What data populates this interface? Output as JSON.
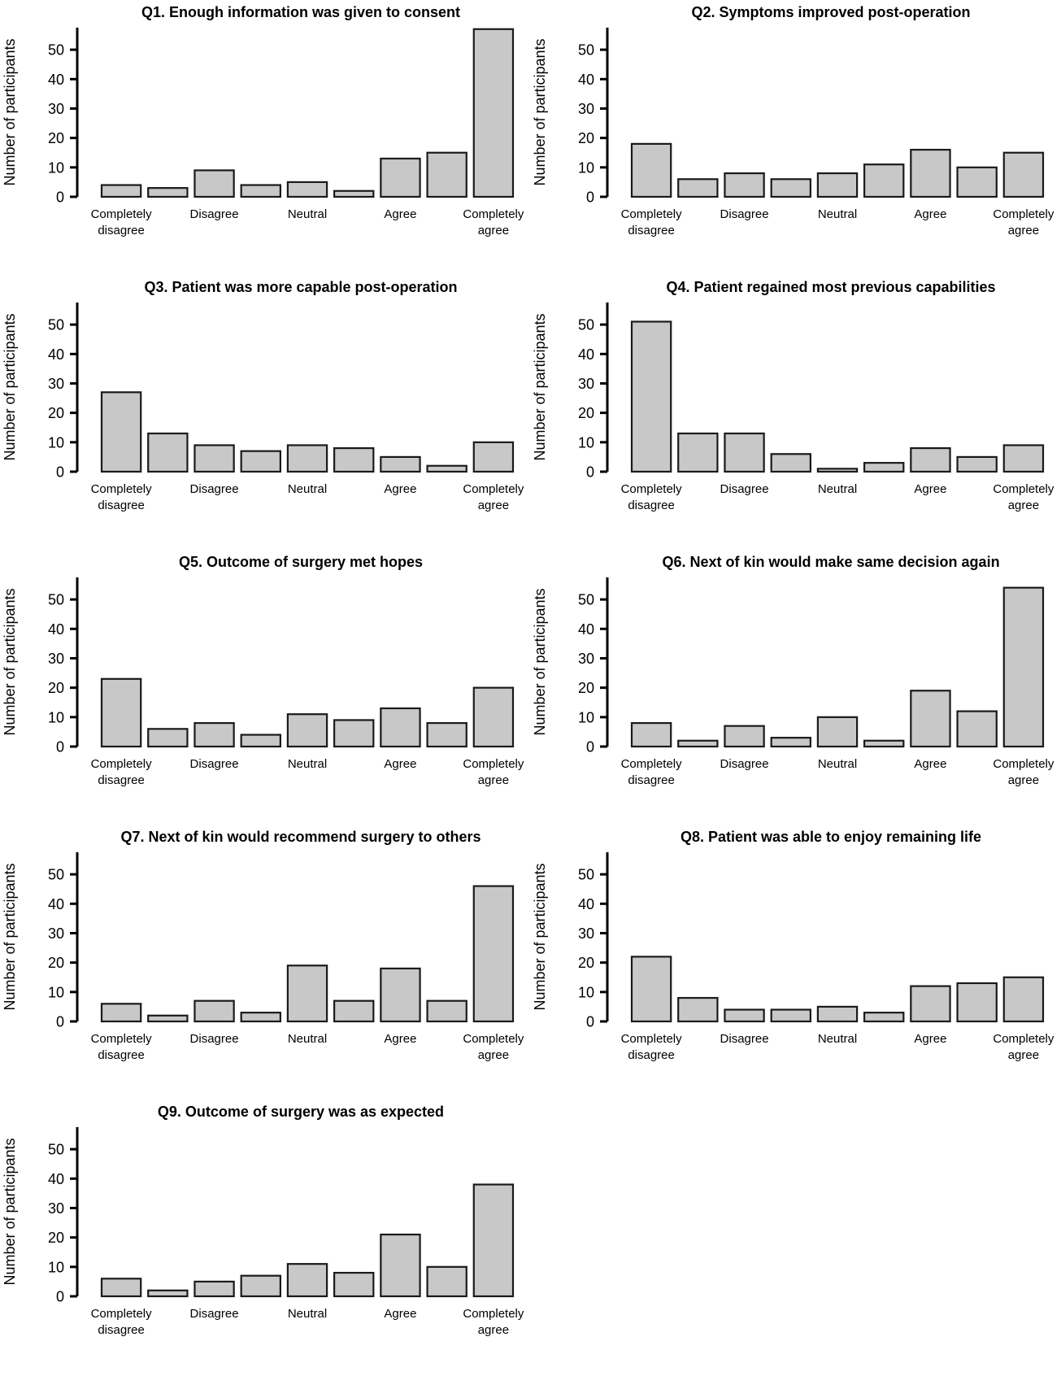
{
  "figure": {
    "background": "#ffffff",
    "description": "Grid of nine Likert-scale bar charts of survey responses (Q1-Q9)"
  },
  "colors": {
    "bar_fill": "#c8c8c8",
    "bar_stroke": "#1a1a1a",
    "axis": "#000000",
    "text": "#000000"
  },
  "shared_axes": {
    "ylabel": "Number of participants",
    "yticks": [
      0,
      10,
      20,
      30,
      40,
      50
    ],
    "ylim": [
      0,
      57
    ],
    "bars_per_chart": 9,
    "categories": [
      "Completely disagree",
      "Disagree",
      "Neutral",
      "Agree",
      "Completely agree"
    ],
    "category_bar_indices": [
      0,
      2,
      4,
      6,
      8
    ],
    "grid": "off",
    "legend": "none"
  },
  "chart_data": [
    {
      "type": "bar",
      "title": "Q1. Enough information was given to consent",
      "categories": [
        "Completely disagree",
        "Disagree",
        "Neutral",
        "Agree",
        "Completely agree"
      ],
      "values": [
        4,
        3,
        9,
        4,
        5,
        2,
        13,
        15,
        57
      ],
      "xlabel": "",
      "ylabel": "Number of participants",
      "ylim": [
        0,
        57
      ],
      "yticks": [
        0,
        10,
        20,
        30,
        40,
        50
      ]
    },
    {
      "type": "bar",
      "title": "Q2. Symptoms improved post-operation",
      "categories": [
        "Completely disagree",
        "Disagree",
        "Neutral",
        "Agree",
        "Completely agree"
      ],
      "values": [
        18,
        6,
        8,
        6,
        8,
        11,
        16,
        10,
        15
      ],
      "xlabel": "",
      "ylabel": "Number of participants",
      "ylim": [
        0,
        57
      ],
      "yticks": [
        0,
        10,
        20,
        30,
        40,
        50
      ]
    },
    {
      "type": "bar",
      "title": "Q3. Patient was more capable post-operation",
      "categories": [
        "Completely disagree",
        "Disagree",
        "Neutral",
        "Agree",
        "Completely agree"
      ],
      "values": [
        27,
        13,
        9,
        7,
        9,
        8,
        5,
        2,
        10
      ],
      "xlabel": "",
      "ylabel": "Number of participants",
      "ylim": [
        0,
        57
      ],
      "yticks": [
        0,
        10,
        20,
        30,
        40,
        50
      ]
    },
    {
      "type": "bar",
      "title": "Q4. Patient regained most previous capabilities",
      "categories": [
        "Completely disagree",
        "Disagree",
        "Neutral",
        "Agree",
        "Completely agree"
      ],
      "values": [
        51,
        13,
        13,
        6,
        1,
        3,
        8,
        5,
        9
      ],
      "xlabel": "",
      "ylabel": "Number of participants",
      "ylim": [
        0,
        57
      ],
      "yticks": [
        0,
        10,
        20,
        30,
        40,
        50
      ]
    },
    {
      "type": "bar",
      "title": "Q5. Outcome of surgery met hopes",
      "categories": [
        "Completely disagree",
        "Disagree",
        "Neutral",
        "Agree",
        "Completely agree"
      ],
      "values": [
        23,
        6,
        8,
        4,
        11,
        9,
        13,
        8,
        20
      ],
      "xlabel": "",
      "ylabel": "Number of participants",
      "ylim": [
        0,
        57
      ],
      "yticks": [
        0,
        10,
        20,
        30,
        40,
        50
      ]
    },
    {
      "type": "bar",
      "title": "Q6. Next of kin would make same decision again",
      "categories": [
        "Completely disagree",
        "Disagree",
        "Neutral",
        "Agree",
        "Completely agree"
      ],
      "values": [
        8,
        2,
        7,
        3,
        10,
        2,
        19,
        12,
        54
      ],
      "xlabel": "",
      "ylabel": "Number of participants",
      "ylim": [
        0,
        57
      ],
      "yticks": [
        0,
        10,
        20,
        30,
        40,
        50
      ]
    },
    {
      "type": "bar",
      "title": "Q7. Next of kin would recommend surgery to others",
      "categories": [
        "Completely disagree",
        "Disagree",
        "Neutral",
        "Agree",
        "Completely agree"
      ],
      "values": [
        6,
        2,
        7,
        3,
        19,
        7,
        18,
        7,
        46
      ],
      "xlabel": "",
      "ylabel": "Number of participants",
      "ylim": [
        0,
        57
      ],
      "yticks": [
        0,
        10,
        20,
        30,
        40,
        50
      ]
    },
    {
      "type": "bar",
      "title": "Q8. Patient was able to enjoy remaining life",
      "categories": [
        "Completely disagree",
        "Disagree",
        "Neutral",
        "Agree",
        "Completely agree"
      ],
      "values": [
        22,
        8,
        4,
        4,
        5,
        3,
        12,
        13,
        15
      ],
      "xlabel": "",
      "ylabel": "Number of participants",
      "ylim": [
        0,
        57
      ],
      "yticks": [
        0,
        10,
        20,
        30,
        40,
        50
      ]
    },
    {
      "type": "bar",
      "title": "Q9. Outcome of surgery was as expected",
      "categories": [
        "Completely disagree",
        "Disagree",
        "Neutral",
        "Agree",
        "Completely agree"
      ],
      "values": [
        6,
        2,
        5,
        7,
        11,
        8,
        21,
        10,
        38
      ],
      "xlabel": "",
      "ylabel": "Number of participants",
      "ylim": [
        0,
        57
      ],
      "yticks": [
        0,
        10,
        20,
        30,
        40,
        50
      ]
    }
  ]
}
